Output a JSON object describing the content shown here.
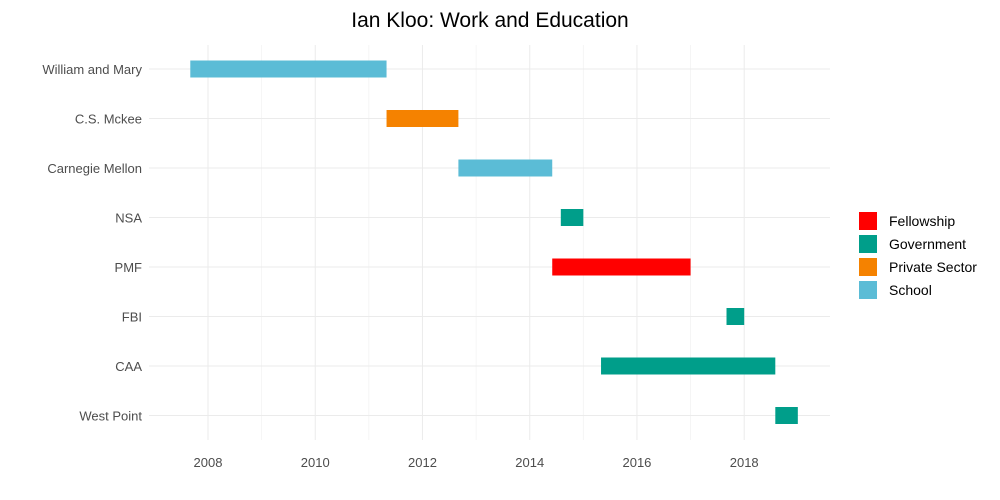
{
  "chart_data": {
    "type": "bar",
    "title": "Ian Kloo: Work and Education",
    "xlabel": "",
    "ylabel": "",
    "xlim": [
      2006.9,
      2019.6
    ],
    "x_ticks": [
      2008,
      2010,
      2012,
      2014,
      2016,
      2018
    ],
    "x_tick_labels": [
      "2008",
      "2010",
      "2012",
      "2014",
      "2016",
      "2018"
    ],
    "grid": true,
    "legend_position": "right",
    "categories": [
      "William and Mary",
      "C.S. Mckee",
      "Carnegie Mellon",
      "NSA",
      "PMF",
      "FBI",
      "CAA",
      "West Point"
    ],
    "legend": [
      {
        "name": "Fellowship",
        "color": "#ff0000"
      },
      {
        "name": "Government",
        "color": "#009e8a"
      },
      {
        "name": "Private Sector",
        "color": "#f58200"
      },
      {
        "name": "School",
        "color": "#5bbcd6"
      }
    ],
    "bars": [
      {
        "label": "William and Mary",
        "start": 2007.67,
        "end": 2011.33,
        "type": "School"
      },
      {
        "label": "C.S. Mckee",
        "start": 2011.33,
        "end": 2012.67,
        "type": "Private Sector"
      },
      {
        "label": "Carnegie Mellon",
        "start": 2012.67,
        "end": 2014.42,
        "type": "School"
      },
      {
        "label": "NSA",
        "start": 2014.58,
        "end": 2015.0,
        "type": "Government"
      },
      {
        "label": "PMF",
        "start": 2014.42,
        "end": 2017.0,
        "type": "Fellowship"
      },
      {
        "label": "FBI",
        "start": 2017.67,
        "end": 2018.0,
        "type": "Government"
      },
      {
        "label": "CAA",
        "start": 2015.33,
        "end": 2018.58,
        "type": "Government"
      },
      {
        "label": "West Point",
        "start": 2018.58,
        "end": 2019.0,
        "type": "Government"
      }
    ]
  }
}
